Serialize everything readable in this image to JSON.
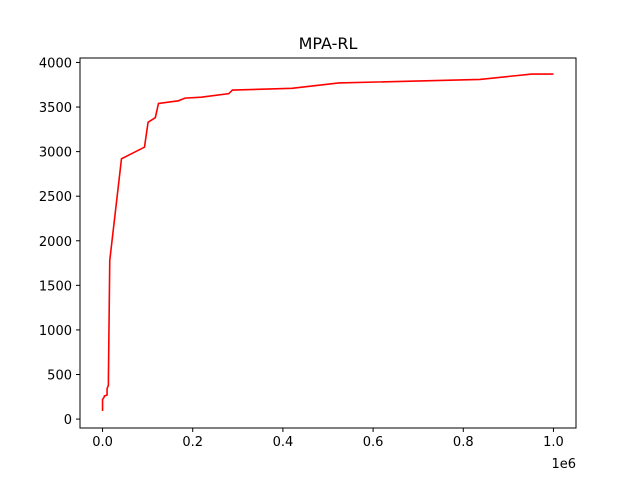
{
  "chart_data": {
    "type": "line",
    "title": "MPA-RL",
    "xlabel": "",
    "ylabel": "",
    "x_offset_label": "1e6",
    "xlim": [
      -0.05,
      1.05
    ],
    "ylim": [
      -100,
      4050
    ],
    "x_ticks": [
      0.0,
      0.2,
      0.4,
      0.6,
      0.8,
      1.0
    ],
    "x_tick_labels": [
      "0.0",
      "0.2",
      "0.4",
      "0.6",
      "0.8",
      "1.0"
    ],
    "y_ticks": [
      0,
      500,
      1000,
      1500,
      2000,
      2500,
      3000,
      3500,
      4000
    ],
    "y_tick_labels": [
      "0",
      "500",
      "1000",
      "1500",
      "2000",
      "2500",
      "3000",
      "3500",
      "4000"
    ],
    "grid": false,
    "series": [
      {
        "color": "#ff0000",
        "x": [
          0.0,
          0.0,
          0.004,
          0.004,
          0.01,
          0.01,
          0.013,
          0.013,
          0.016,
          0.016,
          0.042,
          0.042,
          0.093,
          0.093,
          0.101,
          0.101,
          0.117,
          0.117,
          0.124,
          0.124,
          0.168,
          0.168,
          0.183,
          0.183,
          0.219,
          0.219,
          0.28,
          0.28,
          0.288,
          0.288,
          0.42,
          0.42,
          0.524,
          0.524,
          0.837,
          0.837,
          0.952,
          0.952,
          1.0
        ],
        "y": [
          90,
          220,
          250,
          260,
          270,
          340,
          380,
          450,
          1780,
          1780,
          2920,
          2920,
          3050,
          3050,
          3330,
          3330,
          3380,
          3380,
          3540,
          3540,
          3570,
          3570,
          3600,
          3600,
          3610,
          3610,
          3650,
          3650,
          3690,
          3690,
          3710,
          3710,
          3770,
          3770,
          3810,
          3810,
          3870,
          3870,
          3870
        ]
      }
    ]
  }
}
